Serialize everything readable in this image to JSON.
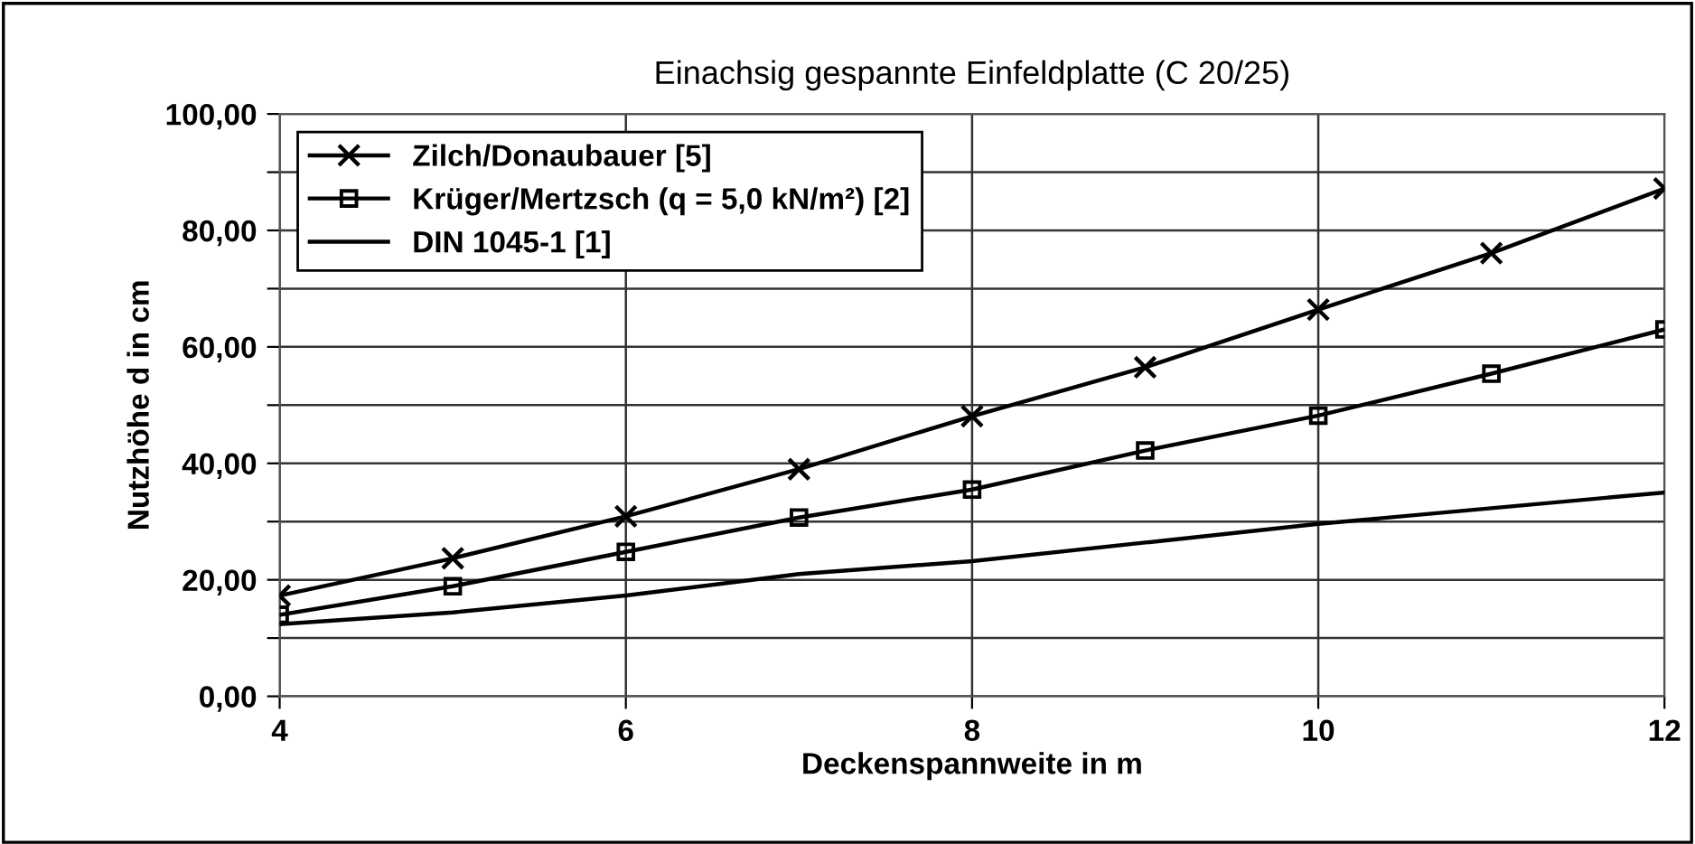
{
  "chart_data": {
    "type": "line",
    "title": "Einachsig gespannte Einfeldplatte (C 20/25)",
    "xlabel": "Deckenspannweite in m",
    "ylabel": "Nutzhöhe d in cm",
    "x": [
      4,
      5,
      6,
      7,
      8,
      9,
      10,
      11,
      12
    ],
    "series": [
      {
        "name": "Zilch/Donaubauer [5]",
        "color": "#000000",
        "marker": "cross",
        "values": [
          17.3,
          23.7,
          30.9,
          39.0,
          48.1,
          56.5,
          66.4,
          76.1,
          87.2
        ]
      },
      {
        "name": "Krüger/Mertzsch (q = 5,0 kN/m²) [2]",
        "color": "#000000",
        "marker": "square",
        "values": [
          14.0,
          18.9,
          24.8,
          30.7,
          35.5,
          42.2,
          48.2,
          55.4,
          63.0
        ]
      },
      {
        "name": "DIN 1045-1 [1]",
        "color": "#000000",
        "marker": "none",
        "values": [
          12.4,
          14.4,
          17.3,
          21.0,
          23.2,
          26.4,
          29.6,
          32.3,
          35.0
        ]
      }
    ],
    "xlim": [
      4,
      12
    ],
    "xticks": [
      4,
      6,
      8,
      10,
      12
    ],
    "ylim": [
      0,
      100
    ],
    "yticks": [
      {
        "value": 0,
        "label": "0,00"
      },
      {
        "value": 10,
        "label": null
      },
      {
        "value": 20,
        "label": "20,00"
      },
      {
        "value": 30,
        "label": null
      },
      {
        "value": 40,
        "label": "40,00"
      },
      {
        "value": 50,
        "label": null
      },
      {
        "value": 60,
        "label": "60,00"
      },
      {
        "value": 70,
        "label": null
      },
      {
        "value": 80,
        "label": "80,00"
      },
      {
        "value": 90,
        "label": null
      },
      {
        "value": 100,
        "label": "100,00"
      }
    ],
    "grid": true,
    "legend": "top left",
    "line_style": "solid"
  }
}
